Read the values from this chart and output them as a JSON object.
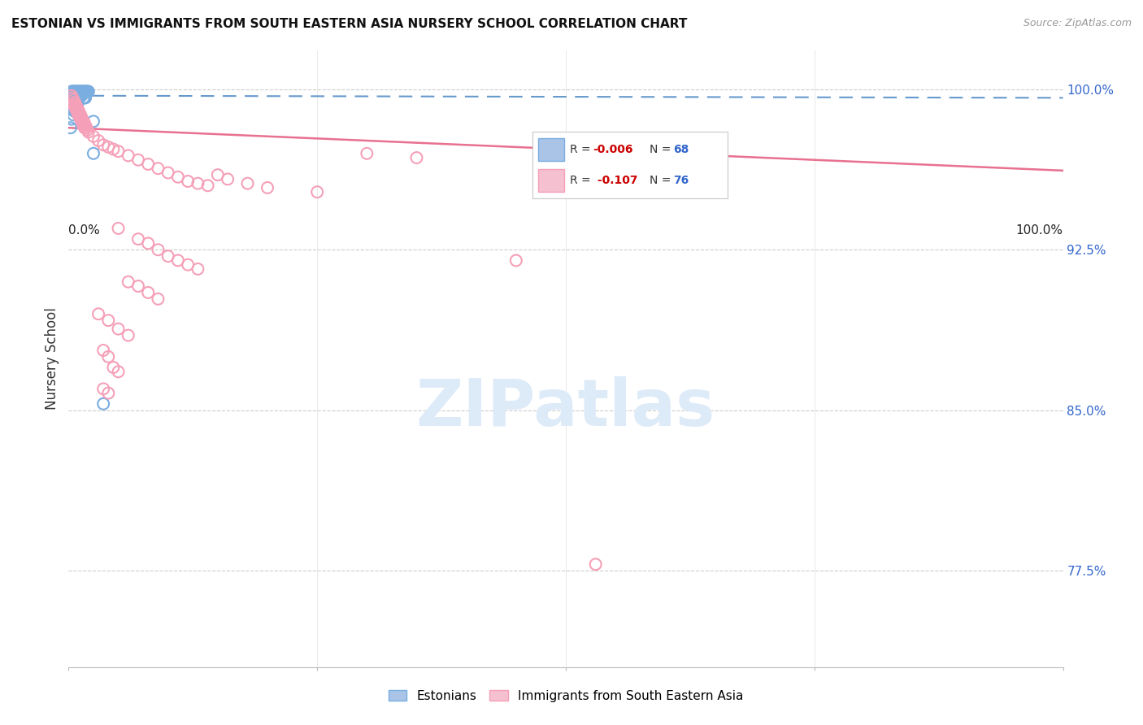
{
  "title": "ESTONIAN VS IMMIGRANTS FROM SOUTH EASTERN ASIA NURSERY SCHOOL CORRELATION CHART",
  "source": "Source: ZipAtlas.com",
  "ylabel": "Nursery School",
  "ytick_labels": [
    "100.0%",
    "92.5%",
    "85.0%",
    "77.5%"
  ],
  "ytick_values": [
    1.0,
    0.925,
    0.85,
    0.775
  ],
  "legend_label_estonian": "Estonians",
  "legend_label_immigrants": "Immigrants from South Eastern Asia",
  "r_blue_text": "-0.006",
  "n_blue_text": "68",
  "r_pink_text": "-0.107",
  "n_pink_text": "76",
  "blue_scatter_color": "#7aaee0",
  "pink_scatter_color": "#f5a0b8",
  "blue_line_color": "#6699cc",
  "pink_line_color": "#e87090",
  "blue_patch_color": "#aac4e8",
  "pink_patch_color": "#f5c0d0",
  "r_color": "#cc0000",
  "n_color": "#3366cc",
  "ytick_color": "#3366cc",
  "grid_color": "#cccccc",
  "blue_points": [
    [
      0.003,
      0.999
    ],
    [
      0.004,
      0.999
    ],
    [
      0.004,
      0.998
    ],
    [
      0.005,
      0.999
    ],
    [
      0.005,
      0.998
    ],
    [
      0.006,
      0.999
    ],
    [
      0.006,
      0.998
    ],
    [
      0.007,
      0.999
    ],
    [
      0.007,
      0.998
    ],
    [
      0.008,
      0.999
    ],
    [
      0.008,
      0.998
    ],
    [
      0.009,
      0.999
    ],
    [
      0.009,
      0.998
    ],
    [
      0.01,
      0.999
    ],
    [
      0.01,
      0.998
    ],
    [
      0.011,
      0.999
    ],
    [
      0.011,
      0.998
    ],
    [
      0.012,
      0.999
    ],
    [
      0.012,
      0.998
    ],
    [
      0.013,
      0.999
    ],
    [
      0.013,
      0.998
    ],
    [
      0.014,
      0.999
    ],
    [
      0.014,
      0.998
    ],
    [
      0.015,
      0.999
    ],
    [
      0.015,
      0.998
    ],
    [
      0.016,
      0.999
    ],
    [
      0.017,
      0.999
    ],
    [
      0.018,
      0.999
    ],
    [
      0.019,
      0.999
    ],
    [
      0.02,
      0.999
    ],
    [
      0.005,
      0.997
    ],
    [
      0.007,
      0.997
    ],
    [
      0.009,
      0.997
    ],
    [
      0.011,
      0.997
    ],
    [
      0.013,
      0.997
    ],
    [
      0.015,
      0.996
    ],
    [
      0.016,
      0.996
    ],
    [
      0.017,
      0.996
    ],
    [
      0.005,
      0.996
    ],
    [
      0.006,
      0.996
    ],
    [
      0.007,
      0.995
    ],
    [
      0.008,
      0.995
    ],
    [
      0.009,
      0.995
    ],
    [
      0.01,
      0.995
    ],
    [
      0.006,
      0.994
    ],
    [
      0.007,
      0.994
    ],
    [
      0.008,
      0.994
    ],
    [
      0.005,
      0.993
    ],
    [
      0.006,
      0.993
    ],
    [
      0.007,
      0.993
    ],
    [
      0.008,
      0.993
    ],
    [
      0.009,
      0.993
    ],
    [
      0.005,
      0.992
    ],
    [
      0.006,
      0.992
    ],
    [
      0.007,
      0.992
    ],
    [
      0.005,
      0.991
    ],
    [
      0.006,
      0.991
    ],
    [
      0.005,
      0.99
    ],
    [
      0.006,
      0.99
    ],
    [
      0.008,
      0.989
    ],
    [
      0.009,
      0.989
    ],
    [
      0.005,
      0.988
    ],
    [
      0.01,
      0.988
    ],
    [
      0.025,
      0.97
    ],
    [
      0.002,
      0.982
    ],
    [
      0.035,
      0.853
    ],
    [
      0.025,
      0.985
    ],
    [
      0.003,
      0.986
    ]
  ],
  "pink_points": [
    [
      0.003,
      0.997
    ],
    [
      0.004,
      0.996
    ],
    [
      0.005,
      0.995
    ],
    [
      0.005,
      0.993
    ],
    [
      0.006,
      0.994
    ],
    [
      0.006,
      0.992
    ],
    [
      0.007,
      0.993
    ],
    [
      0.007,
      0.991
    ],
    [
      0.008,
      0.992
    ],
    [
      0.008,
      0.99
    ],
    [
      0.009,
      0.991
    ],
    [
      0.009,
      0.989
    ],
    [
      0.01,
      0.99
    ],
    [
      0.01,
      0.988
    ],
    [
      0.011,
      0.989
    ],
    [
      0.011,
      0.987
    ],
    [
      0.012,
      0.988
    ],
    [
      0.012,
      0.986
    ],
    [
      0.013,
      0.987
    ],
    [
      0.013,
      0.985
    ],
    [
      0.014,
      0.986
    ],
    [
      0.014,
      0.984
    ],
    [
      0.015,
      0.985
    ],
    [
      0.015,
      0.983
    ],
    [
      0.016,
      0.984
    ],
    [
      0.016,
      0.982
    ],
    [
      0.017,
      0.983
    ],
    [
      0.018,
      0.982
    ],
    [
      0.019,
      0.981
    ],
    [
      0.02,
      0.98
    ],
    [
      0.025,
      0.978
    ],
    [
      0.03,
      0.976
    ],
    [
      0.035,
      0.974
    ],
    [
      0.04,
      0.973
    ],
    [
      0.045,
      0.972
    ],
    [
      0.05,
      0.971
    ],
    [
      0.06,
      0.969
    ],
    [
      0.07,
      0.967
    ],
    [
      0.08,
      0.965
    ],
    [
      0.09,
      0.963
    ],
    [
      0.1,
      0.961
    ],
    [
      0.11,
      0.959
    ],
    [
      0.12,
      0.957
    ],
    [
      0.13,
      0.956
    ],
    [
      0.14,
      0.955
    ],
    [
      0.15,
      0.96
    ],
    [
      0.16,
      0.958
    ],
    [
      0.18,
      0.956
    ],
    [
      0.2,
      0.954
    ],
    [
      0.25,
      0.952
    ],
    [
      0.3,
      0.97
    ],
    [
      0.35,
      0.968
    ],
    [
      0.05,
      0.935
    ],
    [
      0.07,
      0.93
    ],
    [
      0.08,
      0.928
    ],
    [
      0.09,
      0.925
    ],
    [
      0.1,
      0.922
    ],
    [
      0.11,
      0.92
    ],
    [
      0.12,
      0.918
    ],
    [
      0.13,
      0.916
    ],
    [
      0.06,
      0.91
    ],
    [
      0.07,
      0.908
    ],
    [
      0.08,
      0.905
    ],
    [
      0.09,
      0.902
    ],
    [
      0.03,
      0.895
    ],
    [
      0.04,
      0.892
    ],
    [
      0.05,
      0.888
    ],
    [
      0.06,
      0.885
    ],
    [
      0.035,
      0.878
    ],
    [
      0.04,
      0.875
    ],
    [
      0.045,
      0.87
    ],
    [
      0.05,
      0.868
    ],
    [
      0.035,
      0.86
    ],
    [
      0.04,
      0.858
    ],
    [
      0.45,
      0.92
    ],
    [
      0.53,
      0.778
    ]
  ]
}
